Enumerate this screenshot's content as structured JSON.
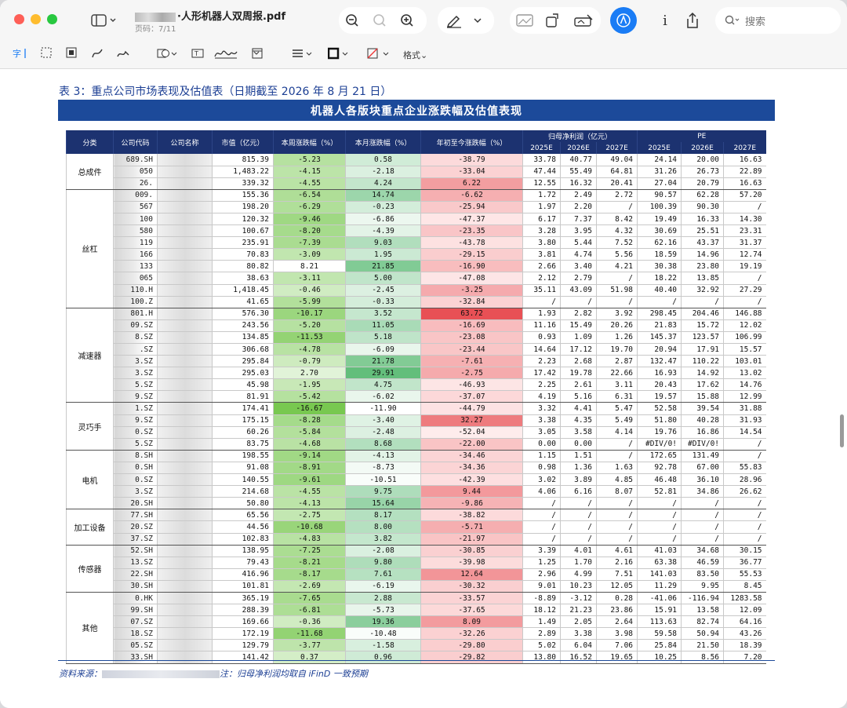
{
  "window": {
    "title_suffix": "·人形机器人双周报.pdf",
    "page_indicator": "页码：7/11",
    "search_placeholder": "搜索",
    "markup_format_label": "格式"
  },
  "caption": "表 3：重点公司市场表现及估值表（日期截至 2026 年 8 月 21 日）",
  "table_title": "机器人各版块重点企业涨跌幅及估值表现",
  "headers": {
    "category": "分类",
    "code": "公司代码",
    "name": "公司名称",
    "mktcap": "市值（亿元）",
    "week": "本周涨跌幅（%）",
    "month": "本月涨跌幅（%）",
    "ytd": "年初至今涨跌幅（%）",
    "profit": "归母净利润（亿元）",
    "pe": "PE",
    "y1": "2025E",
    "y2": "2026E",
    "y3": "2027E"
  },
  "groups": [
    {
      "name": "总成件",
      "rows": [
        {
          "code": "689.SH",
          "cap": "815.39",
          "w": "-5.23",
          "m": "0.58",
          "y": "-38.79",
          "p1": "33.78",
          "p2": "40.77",
          "p3": "49.04",
          "e1": "24.14",
          "e2": "20.00",
          "e3": "16.63"
        },
        {
          "code": "050",
          "cap": "1,483.22",
          "w": "-4.15",
          "m": "-2.18",
          "y": "-33.04",
          "p1": "47.44",
          "p2": "55.49",
          "p3": "64.81",
          "e1": "31.26",
          "e2": "26.73",
          "e3": "22.89"
        },
        {
          "code": "26.",
          "cap": "339.32",
          "w": "-4.55",
          "m": "4.24",
          "y": "6.22",
          "p1": "12.55",
          "p2": "16.32",
          "p3": "20.41",
          "e1": "27.04",
          "e2": "20.79",
          "e3": "16.63"
        }
      ]
    },
    {
      "name": "丝杠",
      "rows": [
        {
          "code": "009.",
          "cap": "155.36",
          "w": "-6.54",
          "m": "14.74",
          "y": "-6.62",
          "p1": "1.72",
          "p2": "2.49",
          "p3": "2.72",
          "e1": "90.57",
          "e2": "62.28",
          "e3": "57.20"
        },
        {
          "code": "567",
          "cap": "198.20",
          "w": "-6.29",
          "m": "-0.23",
          "y": "-25.94",
          "p1": "1.97",
          "p2": "2.20",
          "p3": "/",
          "e1": "100.39",
          "e2": "90.30",
          "e3": "/"
        },
        {
          "code": "100",
          "cap": "120.32",
          "w": "-9.46",
          "m": "-6.86",
          "y": "-47.37",
          "p1": "6.17",
          "p2": "7.37",
          "p3": "8.42",
          "e1": "19.49",
          "e2": "16.33",
          "e3": "14.30"
        },
        {
          "code": "580",
          "cap": "100.67",
          "w": "-8.20",
          "m": "-4.39",
          "y": "-23.35",
          "p1": "3.28",
          "p2": "3.95",
          "p3": "4.32",
          "e1": "30.69",
          "e2": "25.51",
          "e3": "23.31"
        },
        {
          "code": "119",
          "cap": "235.91",
          "w": "-7.39",
          "m": "9.03",
          "y": "-43.78",
          "p1": "3.80",
          "p2": "5.44",
          "p3": "7.52",
          "e1": "62.16",
          "e2": "43.37",
          "e3": "31.37"
        },
        {
          "code": "166",
          "cap": "70.83",
          "w": "-3.09",
          "m": "1.95",
          "y": "-29.15",
          "p1": "3.81",
          "p2": "4.74",
          "p3": "5.56",
          "e1": "18.59",
          "e2": "14.96",
          "e3": "12.74"
        },
        {
          "code": "133",
          "cap": "80.82",
          "w": "8.21",
          "m": "21.85",
          "y": "-16.90",
          "p1": "2.66",
          "p2": "3.40",
          "p3": "4.21",
          "e1": "30.38",
          "e2": "23.80",
          "e3": "19.19"
        },
        {
          "code": "065",
          "cap": "38.63",
          "w": "-3.11",
          "m": "5.00",
          "y": "-47.08",
          "p1": "2.12",
          "p2": "2.79",
          "p3": "/",
          "e1": "18.22",
          "e2": "13.85",
          "e3": "/"
        },
        {
          "code": "110.H",
          "cap": "1,418.45",
          "w": "-0.46",
          "m": "-2.45",
          "y": "-3.25",
          "p1": "35.11",
          "p2": "43.09",
          "p3": "51.98",
          "e1": "40.40",
          "e2": "32.92",
          "e3": "27.29"
        },
        {
          "code": "100.Z",
          "cap": "41.65",
          "w": "-5.99",
          "m": "-0.33",
          "y": "-32.84",
          "p1": "/",
          "p2": "/",
          "p3": "/",
          "e1": "/",
          "e2": "/",
          "e3": "/"
        }
      ]
    },
    {
      "name": "减速器",
      "rows": [
        {
          "code": "801.H",
          "cap": "576.30",
          "w": "-10.17",
          "m": "3.52",
          "y": "63.72",
          "p1": "1.93",
          "p2": "2.82",
          "p3": "3.92",
          "e1": "298.45",
          "e2": "204.46",
          "e3": "146.88"
        },
        {
          "code": "09.SZ",
          "cap": "243.56",
          "w": "-5.20",
          "m": "11.05",
          "y": "-16.69",
          "p1": "11.16",
          "p2": "15.49",
          "p3": "20.26",
          "e1": "21.83",
          "e2": "15.72",
          "e3": "12.02"
        },
        {
          "code": "8.SZ",
          "cap": "134.85",
          "w": "-11.53",
          "m": "5.18",
          "y": "-23.08",
          "p1": "0.93",
          "p2": "1.09",
          "p3": "1.26",
          "e1": "145.37",
          "e2": "123.57",
          "e3": "106.99"
        },
        {
          "code": ".SZ",
          "cap": "306.68",
          "w": "-4.78",
          "m": "-6.09",
          "y": "-23.44",
          "p1": "14.64",
          "p2": "17.12",
          "p3": "19.70",
          "e1": "20.94",
          "e2": "17.91",
          "e3": "15.57"
        },
        {
          "code": "3.SZ",
          "cap": "295.84",
          "w": "-0.79",
          "m": "21.78",
          "y": "-7.61",
          "p1": "2.23",
          "p2": "2.68",
          "p3": "2.87",
          "e1": "132.47",
          "e2": "110.22",
          "e3": "103.01"
        },
        {
          "code": "3.SZ",
          "cap": "295.03",
          "w": "2.70",
          "m": "29.91",
          "y": "-2.75",
          "p1": "17.42",
          "p2": "19.78",
          "p3": "22.66",
          "e1": "16.93",
          "e2": "14.92",
          "e3": "13.02"
        },
        {
          "code": "5.SZ",
          "cap": "45.98",
          "w": "-1.95",
          "m": "4.75",
          "y": "-46.93",
          "p1": "2.25",
          "p2": "2.61",
          "p3": "3.11",
          "e1": "20.43",
          "e2": "17.62",
          "e3": "14.76"
        },
        {
          "code": "9.SZ",
          "cap": "81.91",
          "w": "-5.42",
          "m": "-6.02",
          "y": "-37.07",
          "p1": "4.19",
          "p2": "5.16",
          "p3": "6.31",
          "e1": "19.57",
          "e2": "15.88",
          "e3": "12.99"
        }
      ]
    },
    {
      "name": "灵巧手",
      "rows": [
        {
          "code": "1.SZ",
          "cap": "174.41",
          "w": "-16.67",
          "m": "-11.90",
          "y": "-44.79",
          "p1": "3.32",
          "p2": "4.41",
          "p3": "5.47",
          "e1": "52.58",
          "e2": "39.54",
          "e3": "31.88"
        },
        {
          "code": "9.SZ",
          "cap": "175.15",
          "w": "-8.28",
          "m": "-3.40",
          "y": "32.27",
          "p1": "3.38",
          "p2": "4.35",
          "p3": "5.49",
          "e1": "51.80",
          "e2": "40.28",
          "e3": "31.93"
        },
        {
          "code": "0.SZ",
          "cap": "60.26",
          "w": "-5.84",
          "m": "-2.48",
          "y": "-52.04",
          "p1": "3.05",
          "p2": "3.58",
          "p3": "4.14",
          "e1": "19.76",
          "e2": "16.86",
          "e3": "14.54"
        },
        {
          "code": "5.SZ",
          "cap": "83.75",
          "w": "-4.68",
          "m": "8.68",
          "y": "-22.00",
          "p1": "0.00",
          "p2": "0.00",
          "p3": "/",
          "e1": "#DIV/0!",
          "e2": "#DIV/0!",
          "e3": "/"
        }
      ]
    },
    {
      "name": "电机",
      "rows": [
        {
          "code": "8.SH",
          "cap": "198.55",
          "w": "-9.14",
          "m": "-4.13",
          "y": "-34.46",
          "p1": "1.15",
          "p2": "1.51",
          "p3": "/",
          "e1": "172.65",
          "e2": "131.49",
          "e3": "/"
        },
        {
          "code": "0.SH",
          "cap": "91.08",
          "w": "-8.91",
          "m": "-8.73",
          "y": "-34.36",
          "p1": "0.98",
          "p2": "1.36",
          "p3": "1.63",
          "e1": "92.78",
          "e2": "67.00",
          "e3": "55.83"
        },
        {
          "code": "0.SZ",
          "cap": "140.55",
          "w": "-9.61",
          "m": "-10.51",
          "y": "-42.39",
          "p1": "3.02",
          "p2": "3.89",
          "p3": "4.85",
          "e1": "46.48",
          "e2": "36.10",
          "e3": "28.96"
        },
        {
          "code": "3.SZ",
          "cap": "214.68",
          "w": "-4.55",
          "m": "9.75",
          "y": "9.44",
          "p1": "4.06",
          "p2": "6.16",
          "p3": "8.07",
          "e1": "52.81",
          "e2": "34.86",
          "e3": "26.62"
        },
        {
          "code": "20.SH",
          "cap": "50.80",
          "w": "-4.13",
          "m": "15.64",
          "y": "-9.86",
          "p1": "/",
          "p2": "/",
          "p3": "/",
          "e1": "/",
          "e2": "/",
          "e3": "/"
        }
      ]
    },
    {
      "name": "加工设备",
      "rows": [
        {
          "code": "77.SH",
          "cap": "65.56",
          "w": "-2.75",
          "m": "8.17",
          "y": "-38.82",
          "p1": "/",
          "p2": "/",
          "p3": "/",
          "e1": "/",
          "e2": "/",
          "e3": "/"
        },
        {
          "code": "20.SZ",
          "cap": "44.56",
          "w": "-10.68",
          "m": "8.00",
          "y": "-5.71",
          "p1": "/",
          "p2": "/",
          "p3": "/",
          "e1": "/",
          "e2": "/",
          "e3": "/"
        },
        {
          "code": "37.SZ",
          "cap": "102.83",
          "w": "-4.83",
          "m": "3.82",
          "y": "-21.97",
          "p1": "/",
          "p2": "/",
          "p3": "/",
          "e1": "/",
          "e2": "/",
          "e3": "/"
        }
      ]
    },
    {
      "name": "传感器",
      "rows": [
        {
          "code": "52.SH",
          "cap": "138.95",
          "w": "-7.25",
          "m": "-2.08",
          "y": "-30.85",
          "p1": "3.39",
          "p2": "4.01",
          "p3": "4.61",
          "e1": "41.03",
          "e2": "34.68",
          "e3": "30.15"
        },
        {
          "code": "13.SZ",
          "cap": "79.43",
          "w": "-8.21",
          "m": "9.80",
          "y": "-39.98",
          "p1": "1.25",
          "p2": "1.70",
          "p3": "2.16",
          "e1": "63.38",
          "e2": "46.59",
          "e3": "36.77"
        },
        {
          "code": "22.SH",
          "cap": "416.96",
          "w": "-8.17",
          "m": "7.61",
          "y": "12.64",
          "p1": "2.96",
          "p2": "4.99",
          "p3": "7.51",
          "e1": "141.03",
          "e2": "83.50",
          "e3": "55.53"
        },
        {
          "code": "30.SH",
          "cap": "101.81",
          "w": "-2.69",
          "m": "-6.19",
          "y": "-30.32",
          "p1": "9.01",
          "p2": "10.23",
          "p3": "12.05",
          "e1": "11.29",
          "e2": "9.95",
          "e3": "8.45"
        }
      ]
    },
    {
      "name": "其他",
      "rows": [
        {
          "code": "0.HK",
          "cap": "365.19",
          "w": "-7.65",
          "m": "2.88",
          "y": "-33.57",
          "p1": "-8.89",
          "p2": "-3.12",
          "p3": "0.28",
          "e1": "-41.06",
          "e2": "-116.94",
          "e3": "1283.58"
        },
        {
          "code": "99.SH",
          "cap": "288.39",
          "w": "-6.81",
          "m": "-5.73",
          "y": "-37.65",
          "p1": "18.12",
          "p2": "21.23",
          "p3": "23.86",
          "e1": "15.91",
          "e2": "13.58",
          "e3": "12.09"
        },
        {
          "code": "07.SZ",
          "cap": "169.66",
          "w": "-0.36",
          "m": "19.36",
          "y": "8.09",
          "p1": "1.49",
          "p2": "2.05",
          "p3": "2.64",
          "e1": "113.63",
          "e2": "82.74",
          "e3": "64.16"
        },
        {
          "code": "18.SZ",
          "cap": "172.19",
          "w": "-11.68",
          "m": "-10.48",
          "y": "-32.26",
          "p1": "2.89",
          "p2": "3.38",
          "p3": "3.98",
          "e1": "59.58",
          "e2": "50.94",
          "e3": "43.26"
        },
        {
          "code": "05.SZ",
          "cap": "129.79",
          "w": "-3.77",
          "m": "-1.58",
          "y": "-29.80",
          "p1": "5.02",
          "p2": "6.04",
          "p3": "7.06",
          "e1": "25.84",
          "e2": "21.50",
          "e3": "18.39"
        },
        {
          "code": "33.SH",
          "cap": "141.42",
          "w": "0.37",
          "m": "0.96",
          "y": "-29.82",
          "p1": "13.80",
          "p2": "16.52",
          "p3": "19.65",
          "e1": "10.25",
          "e2": "8.56",
          "e3": "7.20"
        }
      ]
    }
  ],
  "footer": {
    "prefix": "资料来源：",
    "suffix": "注：归母净利润均取自 iFinD 一致预期"
  }
}
